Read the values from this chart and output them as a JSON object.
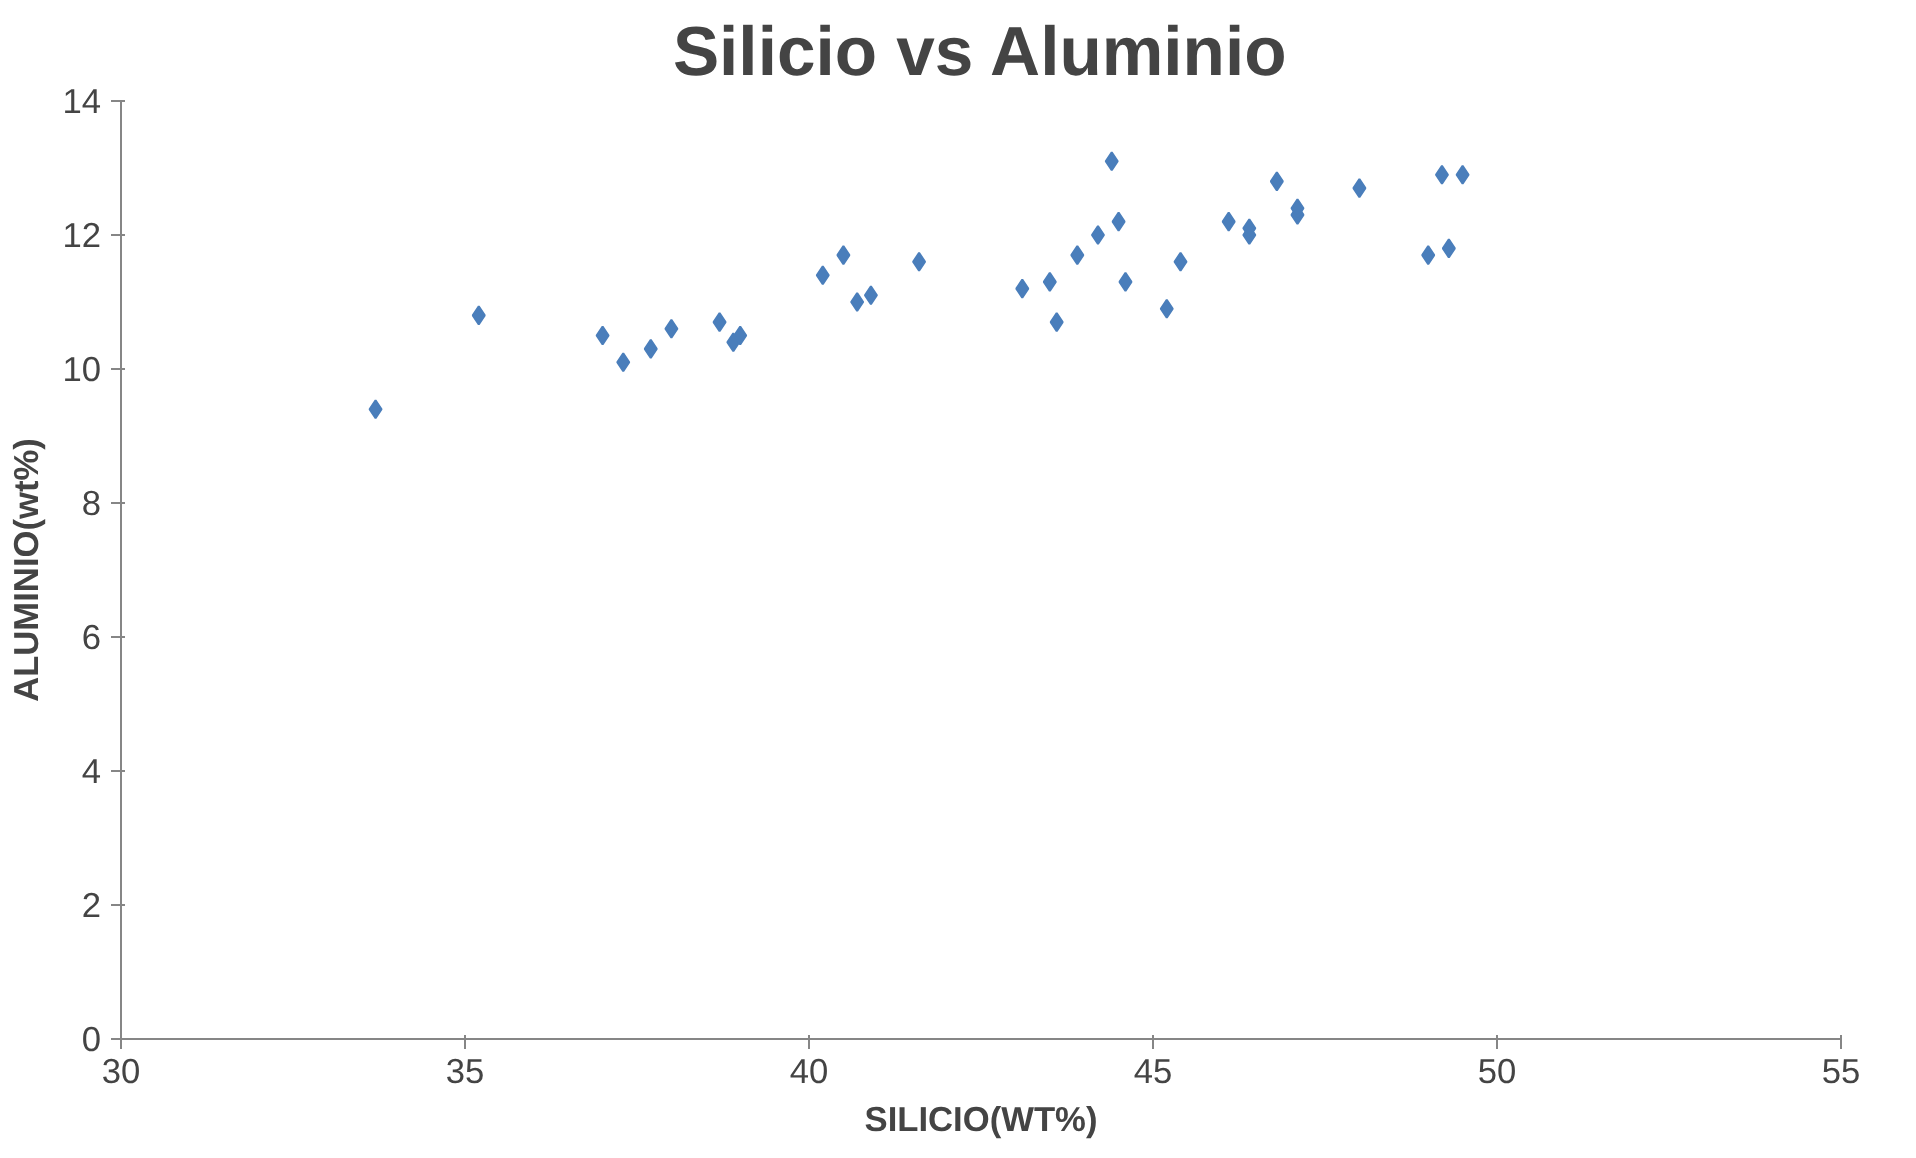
{
  "chart_data": {
    "type": "scatter",
    "title": "Silicio vs Aluminio",
    "xlabel": "SILICIO(WT%)",
    "ylabel": "ALUMINIO(wt%)",
    "x": [
      33.7,
      35.2,
      37.0,
      37.3,
      37.7,
      38.0,
      38.7,
      38.9,
      39.0,
      40.2,
      40.5,
      40.7,
      40.9,
      41.6,
      43.1,
      43.5,
      43.6,
      43.9,
      44.2,
      44.4,
      44.5,
      44.6,
      45.2,
      45.4,
      46.1,
      46.4,
      46.4,
      46.8,
      47.1,
      47.1,
      48.0,
      49.0,
      49.2,
      49.3,
      49.5
    ],
    "series": [
      {
        "color": "#4a7ebb",
        "values": [
          9.4,
          10.8,
          10.5,
          10.1,
          10.3,
          10.6,
          10.7,
          10.4,
          10.5,
          11.4,
          11.7,
          11.0,
          11.1,
          11.6,
          11.2,
          11.3,
          10.7,
          11.7,
          12.0,
          13.1,
          12.2,
          11.3,
          10.9,
          11.6,
          12.2,
          12.0,
          12.1,
          12.8,
          12.3,
          12.4,
          12.7,
          11.7,
          12.9,
          11.8,
          12.9
        ]
      }
    ],
    "xlim": [
      30,
      55
    ],
    "xticks": [
      30,
      35,
      40,
      45,
      50,
      55
    ],
    "ylim": [
      0,
      14
    ],
    "yticks": [
      0,
      2,
      4,
      6,
      8,
      10,
      12,
      14
    ],
    "marker": "diamond"
  }
}
